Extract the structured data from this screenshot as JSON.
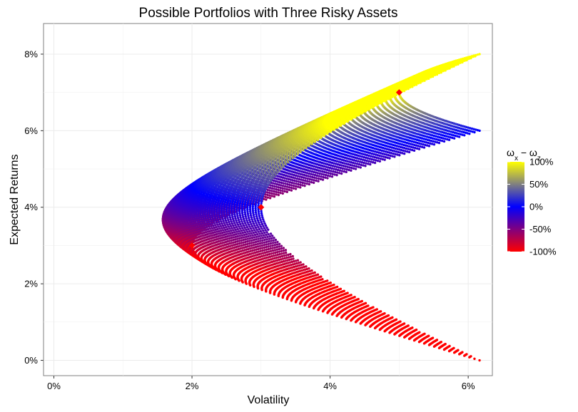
{
  "chart_data": {
    "type": "scatter",
    "title": "Possible Portfolios with Three Risky Assets",
    "xlabel": "Volatility",
    "ylabel": "Expected Returns",
    "xlim": [
      -0.0015,
      0.0635
    ],
    "ylim": [
      -0.004,
      0.088
    ],
    "x_ticks": [
      0,
      0.02,
      0.04,
      0.06
    ],
    "x_tick_labels": [
      "0%",
      "2%",
      "4%",
      "6%"
    ],
    "y_ticks": [
      0,
      0.02,
      0.04,
      0.06,
      0.08
    ],
    "y_tick_labels": [
      "0%",
      "2%",
      "4%",
      "6%",
      "8%"
    ],
    "grid": true,
    "assets": [
      {
        "volatility": 0.02,
        "expected_return": 0.03
      },
      {
        "volatility": 0.03,
        "expected_return": 0.04
      },
      {
        "volatility": 0.05,
        "expected_return": 0.07
      }
    ],
    "asset_color": "#ff0000",
    "portfolio_cloud": {
      "description_free": true,
      "color_variable_scale": [
        -1,
        1
      ]
    },
    "legend": {
      "title_html": "ω<tspan baseline-shift=\"sub\" font-size=\"10\">x</tspan> − ω<tspan baseline-shift=\"sub\" font-size=\"10\">z</tspan>",
      "title_text": "ωx − ωz",
      "position": "right",
      "colors": [
        "#ff0000",
        "#0000ff",
        "#ffff00"
      ],
      "labels": [
        "100%",
        "50%",
        "0%",
        "-50%",
        "-100%"
      ],
      "values": [
        1,
        0.5,
        0,
        -0.5,
        -1
      ]
    }
  }
}
